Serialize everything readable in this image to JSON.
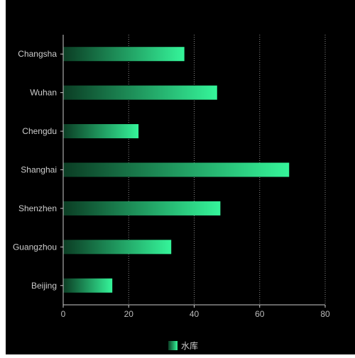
{
  "chart_data": {
    "type": "bar",
    "orientation": "horizontal",
    "categories": [
      "Changsha",
      "Wuhan",
      "Chengdu",
      "Shanghai",
      "Shenzhen",
      "Guangzhou",
      "Beijing"
    ],
    "series": [
      {
        "name": "水库",
        "values": [
          37,
          47,
          23,
          69,
          48,
          33,
          15
        ]
      }
    ],
    "xlim": [
      0,
      80
    ],
    "xticks": [
      "0",
      "20",
      "40",
      "60",
      "80"
    ],
    "grid": "vertical-dotted",
    "legend_placement": "bottom-center",
    "colors": {
      "background": "#000000",
      "bar_start": "#0b3d24",
      "bar_end": "#35f59a",
      "axis": "#cccccc",
      "tick_label": "#bbbbbb",
      "category_label": "#cccccc",
      "grid": "#888888",
      "legend_text": "#cccccc"
    }
  }
}
